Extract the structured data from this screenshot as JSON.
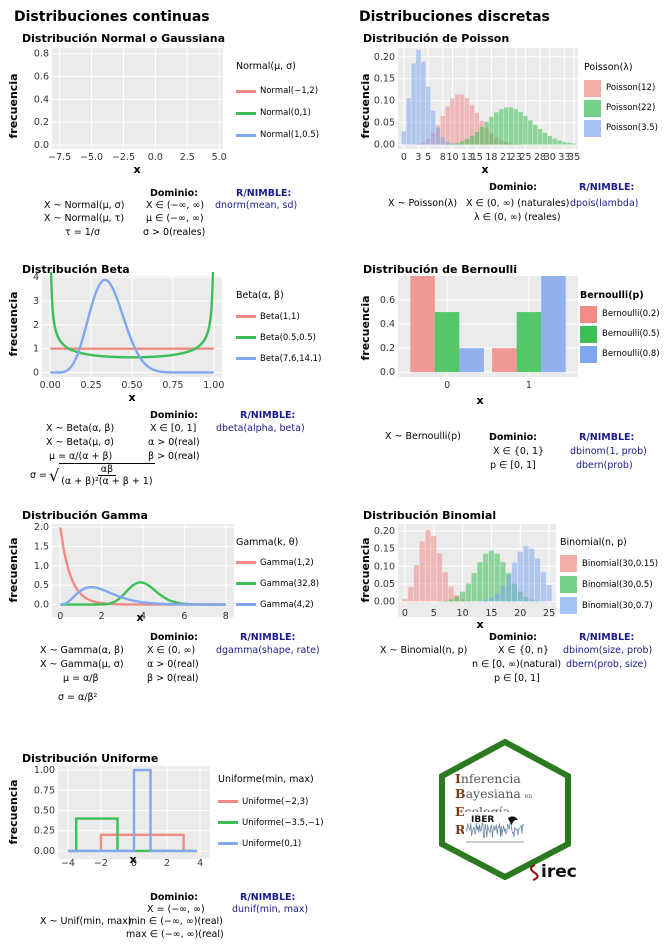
{
  "sections": {
    "continuous": "Distribuciones continuas",
    "discrete": "Distribuciones discretas"
  },
  "axes": {
    "ylabel": "frecuencia",
    "xlabel": "x"
  },
  "headers": {
    "domain": "Dominio:",
    "nimble": "R/NIMBLE:"
  },
  "colors": {
    "red": "#f08b86",
    "green": "#3cbf55",
    "blue": "#7fa8f0",
    "brown": "#7a3b12",
    "hexgreen": "#2b7a20"
  },
  "normal": {
    "title": "Distribución Normal o Gaussiana",
    "legend_title": "Normal(μ, σ)",
    "legend": [
      "Normal(−1,2)",
      "Normal(0,1)",
      "Normal(1,0.5)"
    ],
    "xticks": [
      "−7.5",
      "−5.0",
      "−2.5",
      "0.0",
      "2.5",
      "5.0"
    ],
    "yticks": [
      "0.0",
      "0.2",
      "0.4",
      "0.6",
      "0.8"
    ],
    "f1": "X ~ Normal(μ, σ)",
    "f2": "X ~ Normal(μ, τ)",
    "f3": "τ = 1/σ",
    "d1": "X ∈ (−∞, ∞)",
    "d2": "μ ∈ (−∞, ∞)",
    "d3": "σ > 0(reales)",
    "r1": "dnorm(mean, sd)"
  },
  "beta": {
    "title": "Distribución Beta",
    "legend_title": "Beta(α, β)",
    "legend": [
      "Beta(1,1)",
      "Beta(0.5,0.5)",
      "Beta(7.6,14.1)"
    ],
    "xticks": [
      "0.00",
      "0.25",
      "0.50",
      "0.75",
      "1.00"
    ],
    "yticks": [
      "0",
      "1",
      "2",
      "3",
      "4"
    ],
    "f1": "X ~ Beta(α, β)",
    "f2": "X ~ Beta(μ, σ)",
    "f3": "μ = α/(α + β)",
    "f4_prefix": "σ =",
    "f4_num": "αβ",
    "f4_den": "(α + β)²(α + β + 1)",
    "d1": "X ∈ [0, 1]",
    "d2": "α > 0(real)",
    "d3": "β > 0(real)",
    "r1": "dbeta(alpha, beta)"
  },
  "gamma": {
    "title": "Distribución Gamma",
    "legend_title": "Gamma(k, θ)",
    "legend": [
      "Gamma(1,2)",
      "Gamma(32,8)",
      "Gamma(4,2)"
    ],
    "xticks": [
      "0",
      "2",
      "4",
      "6",
      "8"
    ],
    "yticks": [
      "0.0",
      "0.5",
      "1.0",
      "1.5",
      "2.0"
    ],
    "f1": "X ~ Gamma(α, β)",
    "f2": "X ~ Gamma(μ, σ)",
    "f3": "μ = α/β",
    "f4": "σ = α/β²",
    "d1": "X ∈ (0, ∞)",
    "d2": "α > 0(real)",
    "d3": "β > 0(real)",
    "r1": "dgamma(shape, rate)"
  },
  "uniform": {
    "title": "Distribución Uniforme",
    "legend_title": "Uniforme(min, max)",
    "legend": [
      "Uniforme(−2,3)",
      "Uniforme(−3.5,−1)",
      "Uniforme(0,1)"
    ],
    "xticks": [
      "−4",
      "−2",
      "0",
      "2",
      "4"
    ],
    "yticks": [
      "0.00",
      "0.25",
      "0.50",
      "0.75",
      "1.00"
    ],
    "f1": "X ~ Unif(min, max)",
    "d1": "X = (−∞, ∞)",
    "d2": "min ∈ (−∞, ∞)(real)",
    "d3": "max ∈ (−∞, ∞)(real)",
    "r1": "dunif(min, max)"
  },
  "poisson": {
    "title": "Distribución de Poisson",
    "legend_title": "Poisson(λ)",
    "legend": [
      "Poisson(12)",
      "Poisson(22)",
      "Poisson(3.5)"
    ],
    "xticks": [
      "0",
      "3",
      "5",
      "8",
      "10",
      "13",
      "15",
      "18",
      "21",
      "23",
      "25",
      "28",
      "30",
      "33",
      "35"
    ],
    "yticks": [
      "0.00",
      "0.05",
      "0.10",
      "0.15",
      "0.20"
    ],
    "f1": "X ~ Poisson(λ)",
    "d1": "X ∈ (0, ∞) (naturales)",
    "d2": "λ ∈ (0, ∞) (reales)",
    "r1": "dpois(lambda)"
  },
  "bernoulli": {
    "title": "Distribución de Bernoulli",
    "legend_title": "Bernoulli(p)",
    "legend": [
      "Bernoulli(0.2)",
      "Bernoulli(0.5)",
      "Bernoulli(0.8)"
    ],
    "xticks": [
      "0",
      "1"
    ],
    "yticks": [
      "0.0",
      "0.2",
      "0.4",
      "0.6"
    ],
    "f1": "X ~ Bernoulli(p)",
    "d1": "X ∈ {0, 1}",
    "d2": "p ∈   [0, 1]",
    "r1": "dbinom(1, prob)",
    "r2": "dbern(prob)"
  },
  "binomial": {
    "title": "Distribución Binomial",
    "legend_title": "Binomial(n, p)",
    "legend": [
      "Binomial(30,0.15)",
      "Binomial(30,0.5)",
      "Binomial(30,0.7)"
    ],
    "xticks": [
      "0",
      "5",
      "10",
      "15",
      "20",
      "25"
    ],
    "yticks": [
      "0.00",
      "0.05",
      "0.10",
      "0.15",
      "0.20"
    ],
    "f1": "X ~ Binomial(n, p)",
    "d1": "X ∈ {0, n}",
    "d2": "n ∈ [0, ∞)(natural)",
    "d3": "p ∈ [0, 1]",
    "r1": "dbinom(size, prob)",
    "r2": "dbern(prob, size)"
  },
  "logo": {
    "l1a": "I",
    "l1b": "nferencia",
    "l2a": "B",
    "l2b": "ayesiana",
    "l2c": "en",
    "l3a": "E",
    "l3b": "cología",
    "l3c": "con",
    "l4a": "R",
    "iber": "IBER",
    "irec": "irec"
  },
  "chart_data": [
    {
      "type": "line",
      "title": "Distribución Normal o Gaussiana",
      "xlabel": "x",
      "ylabel": "frecuencia",
      "xlim": [
        -7.5,
        5.0
      ],
      "ylim": [
        0,
        0.8
      ],
      "series": [
        {
          "name": "Normal(−1,2)",
          "mu": -1,
          "sd": 2
        },
        {
          "name": "Normal(0,1)",
          "mu": 0,
          "sd": 1
        },
        {
          "name": "Normal(1,0.5)",
          "mu": 1,
          "sd": 0.5
        }
      ]
    },
    {
      "type": "line",
      "title": "Distribución Beta",
      "xlabel": "x",
      "ylabel": "frecuencia",
      "xlim": [
        0,
        1
      ],
      "ylim": [
        0,
        4
      ],
      "series": [
        {
          "name": "Beta(1,1)",
          "a": 1,
          "b": 1
        },
        {
          "name": "Beta(0.5,0.5)",
          "a": 0.5,
          "b": 0.5
        },
        {
          "name": "Beta(7.6,14.1)",
          "a": 7.6,
          "b": 14.1
        }
      ]
    },
    {
      "type": "line",
      "title": "Distribución Gamma",
      "xlabel": "x",
      "ylabel": "frecuencia",
      "xlim": [
        0,
        8
      ],
      "ylim": [
        0,
        2
      ],
      "series": [
        {
          "name": "Gamma(1,2)",
          "shape": 1,
          "rate": 2
        },
        {
          "name": "Gamma(32,8)",
          "shape": 32,
          "rate": 8
        },
        {
          "name": "Gamma(4,2)",
          "shape": 4,
          "rate": 2
        }
      ]
    },
    {
      "type": "line",
      "title": "Distribución Uniforme",
      "xlabel": "x",
      "ylabel": "frecuencia",
      "xlim": [
        -4,
        4
      ],
      "ylim": [
        0,
        1
      ],
      "series": [
        {
          "name": "Uniforme(−2,3)",
          "min": -2,
          "max": 3
        },
        {
          "name": "Uniforme(−3.5,−1)",
          "min": -3.5,
          "max": -1
        },
        {
          "name": "Uniforme(0,1)",
          "min": 0,
          "max": 1
        }
      ]
    },
    {
      "type": "bar",
      "title": "Distribución de Poisson",
      "xlabel": "x",
      "ylabel": "frecuencia",
      "xlim": [
        0,
        35
      ],
      "ylim": [
        0,
        0.22
      ],
      "series": [
        {
          "name": "Poisson(12)",
          "lambda": 12
        },
        {
          "name": "Poisson(22)",
          "lambda": 22
        },
        {
          "name": "Poisson(3.5)",
          "lambda": 3.5
        }
      ]
    },
    {
      "type": "bar",
      "title": "Distribución de Bernoulli",
      "xlabel": "x",
      "ylabel": "frecuencia",
      "categories": [
        "0",
        "1"
      ],
      "ylim": [
        0,
        0.8
      ],
      "series": [
        {
          "name": "Bernoulli(0.2)",
          "values": [
            0.8,
            0.2
          ]
        },
        {
          "name": "Bernoulli(0.5)",
          "values": [
            0.5,
            0.5
          ]
        },
        {
          "name": "Bernoulli(0.8)",
          "values": [
            0.2,
            0.8
          ]
        }
      ]
    },
    {
      "type": "bar",
      "title": "Distribución Binomial",
      "xlabel": "x",
      "ylabel": "frecuencia",
      "xlim": [
        0,
        25
      ],
      "ylim": [
        0,
        0.22
      ],
      "series": [
        {
          "name": "Binomial(30,0.15)",
          "n": 30,
          "p": 0.15
        },
        {
          "name": "Binomial(30,0.5)",
          "n": 30,
          "p": 0.5
        },
        {
          "name": "Binomial(30,0.7)",
          "n": 30,
          "p": 0.7
        }
      ]
    }
  ]
}
